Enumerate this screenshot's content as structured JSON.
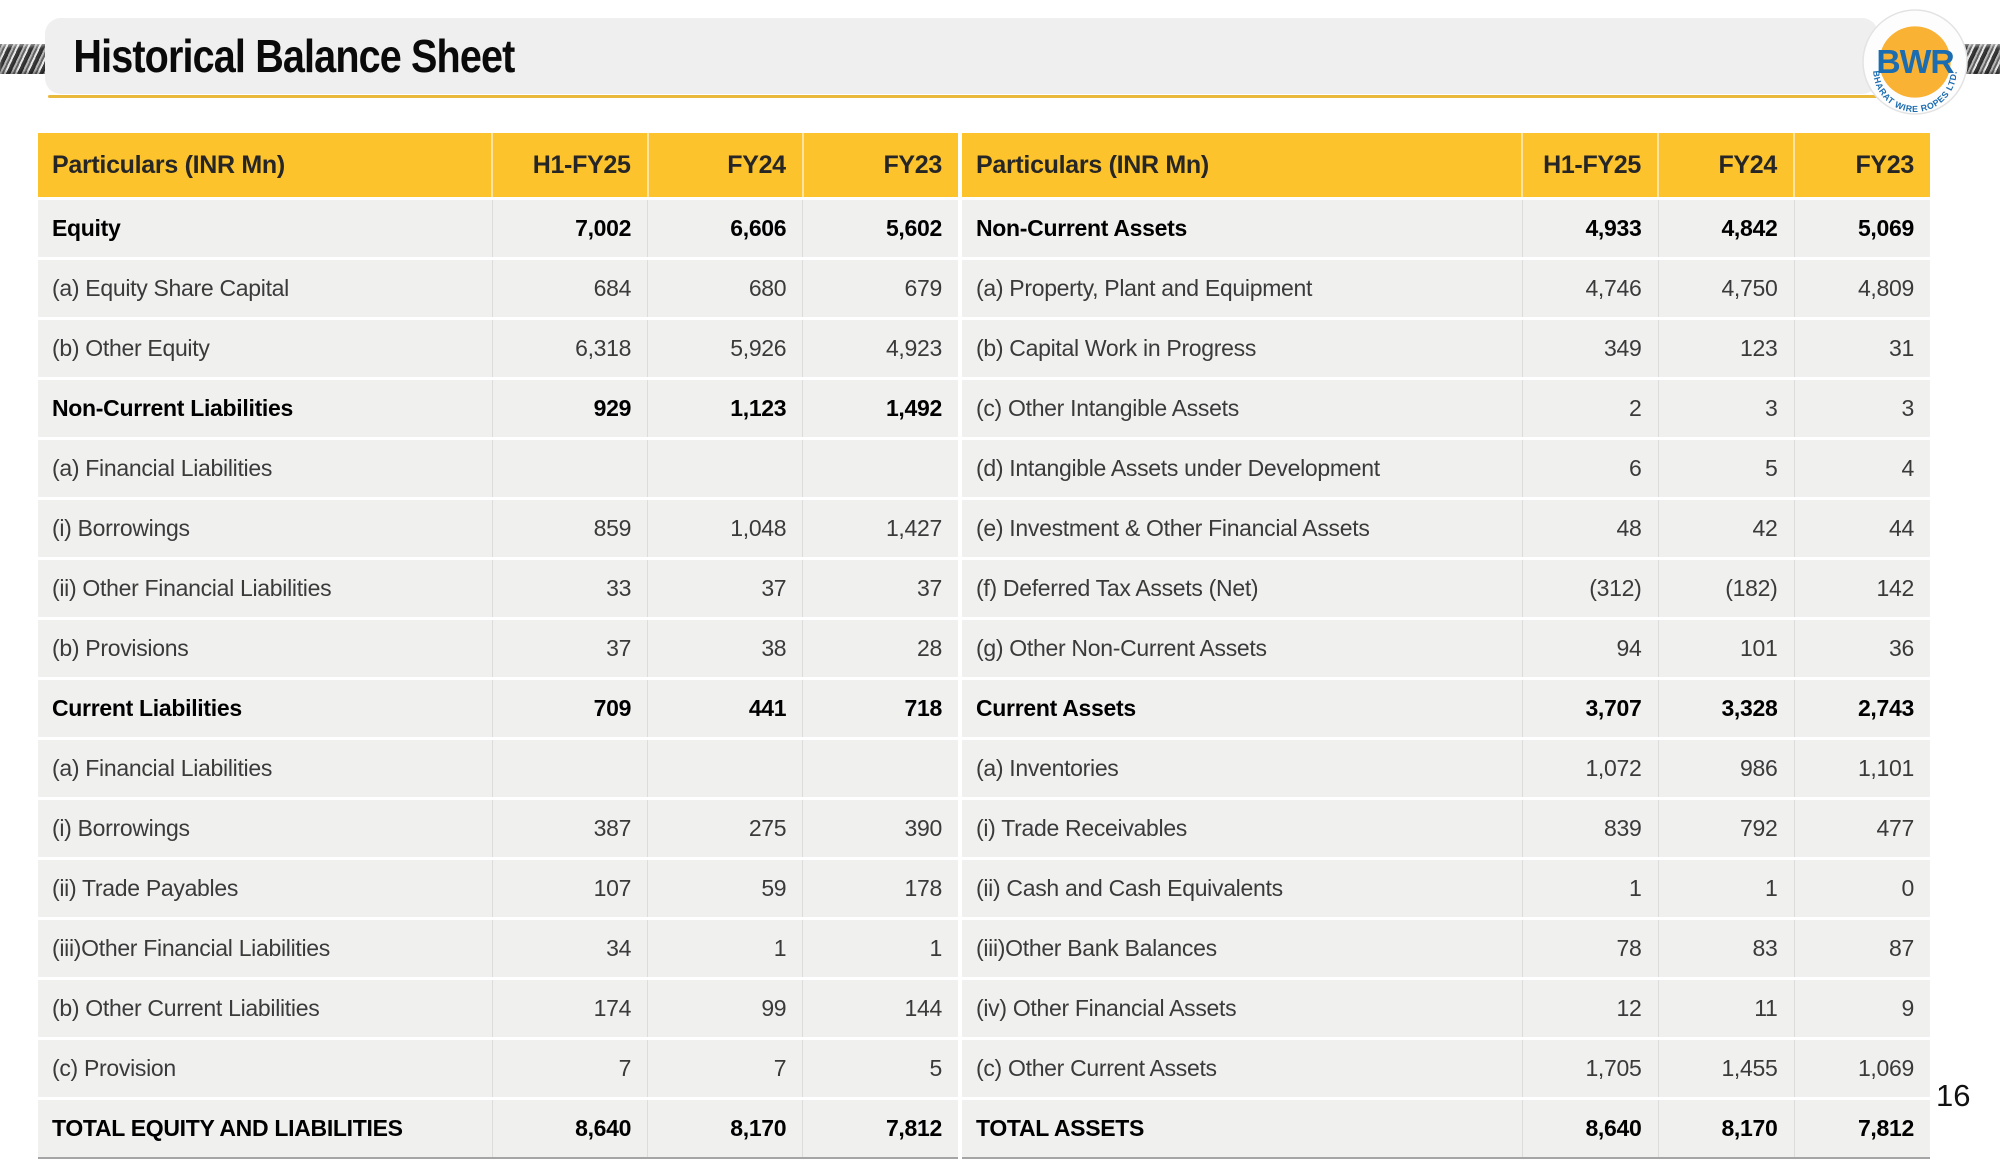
{
  "slide": {
    "title": "Historical Balance Sheet",
    "page_number": "16"
  },
  "logo": {
    "acronym": "BWR",
    "company": "BHARAT WIRE ROPES LTD."
  },
  "colors": {
    "header_bg": "#FCC32C",
    "accent_line": "#E9B93B",
    "row_bg": "#F0F0EF",
    "logo_blue": "#1B6CB0",
    "logo_yellow": "#F9B233"
  },
  "tables": {
    "left": {
      "headers": [
        "Particulars (INR Mn)",
        "H1-FY25",
        "FY24",
        "FY23"
      ],
      "rows": [
        {
          "label": "Equity",
          "values": [
            "7,002",
            "6,606",
            "5,602"
          ],
          "bold": true
        },
        {
          "label": "(a) Equity Share Capital",
          "values": [
            "684",
            "680",
            "679"
          ],
          "bold": false
        },
        {
          "label": "(b) Other Equity",
          "values": [
            "6,318",
            "5,926",
            "4,923"
          ],
          "bold": false
        },
        {
          "label": "Non-Current Liabilities",
          "values": [
            "929",
            "1,123",
            "1,492"
          ],
          "bold": true
        },
        {
          "label": "(a) Financial Liabilities",
          "values": [
            "",
            "",
            ""
          ],
          "bold": false
        },
        {
          "label": "(i) Borrowings",
          "values": [
            "859",
            "1,048",
            "1,427"
          ],
          "bold": false
        },
        {
          "label": "(ii) Other Financial Liabilities",
          "values": [
            "33",
            "37",
            "37"
          ],
          "bold": false
        },
        {
          "label": "(b) Provisions",
          "values": [
            "37",
            "38",
            "28"
          ],
          "bold": false
        },
        {
          "label": "Current Liabilities",
          "values": [
            "709",
            "441",
            "718"
          ],
          "bold": true
        },
        {
          "label": "(a) Financial Liabilities",
          "values": [
            "",
            "",
            ""
          ],
          "bold": false
        },
        {
          "label": "(i) Borrowings",
          "values": [
            "387",
            "275",
            "390"
          ],
          "bold": false
        },
        {
          "label": "(ii) Trade Payables",
          "values": [
            "107",
            "59",
            "178"
          ],
          "bold": false
        },
        {
          "label": "(iii)Other Financial Liabilities",
          "values": [
            "34",
            "1",
            "1"
          ],
          "bold": false
        },
        {
          "label": "(b) Other Current Liabilities",
          "values": [
            "174",
            "99",
            "144"
          ],
          "bold": false
        },
        {
          "label": "(c) Provision",
          "values": [
            "7",
            "7",
            "5"
          ],
          "bold": false
        },
        {
          "label": "TOTAL EQUITY AND LIABILITIES",
          "values": [
            "8,640",
            "8,170",
            "7,812"
          ],
          "bold": true
        }
      ]
    },
    "right": {
      "headers": [
        "Particulars (INR Mn)",
        "H1-FY25",
        "FY24",
        "FY23"
      ],
      "rows": [
        {
          "label": "Non-Current Assets",
          "values": [
            "4,933",
            "4,842",
            "5,069"
          ],
          "bold": true
        },
        {
          "label": "(a) Property, Plant and Equipment",
          "values": [
            "4,746",
            "4,750",
            "4,809"
          ],
          "bold": false
        },
        {
          "label": "(b) Capital Work in Progress",
          "values": [
            "349",
            "123",
            "31"
          ],
          "bold": false
        },
        {
          "label": "(c) Other Intangible Assets",
          "values": [
            "2",
            "3",
            "3"
          ],
          "bold": false
        },
        {
          "label": "(d) Intangible Assets under Development",
          "values": [
            "6",
            "5",
            "4"
          ],
          "bold": false
        },
        {
          "label": "(e) Investment & Other Financial Assets",
          "values": [
            "48",
            "42",
            "44"
          ],
          "bold": false
        },
        {
          "label": "(f) Deferred Tax Assets (Net)",
          "values": [
            "(312)",
            "(182)",
            "142"
          ],
          "bold": false
        },
        {
          "label": "(g) Other Non-Current Assets",
          "values": [
            "94",
            "101",
            "36"
          ],
          "bold": false
        },
        {
          "label": "Current Assets",
          "values": [
            "3,707",
            "3,328",
            "2,743"
          ],
          "bold": true
        },
        {
          "label": "(a) Inventories",
          "values": [
            "1,072",
            "986",
            "1,101"
          ],
          "bold": false
        },
        {
          "label": "(i) Trade Receivables",
          "values": [
            "839",
            "792",
            "477"
          ],
          "bold": false
        },
        {
          "label": "(ii) Cash and Cash Equivalents",
          "values": [
            "1",
            "1",
            "0"
          ],
          "bold": false
        },
        {
          "label": "(iii)Other Bank Balances",
          "values": [
            "78",
            "83",
            "87"
          ],
          "bold": false
        },
        {
          "label": "(iv) Other Financial Assets",
          "values": [
            "12",
            "11",
            "9"
          ],
          "bold": false
        },
        {
          "label": "(c) Other Current Assets",
          "values": [
            "1,705",
            "1,455",
            "1,069"
          ],
          "bold": false
        },
        {
          "label": "TOTAL ASSETS",
          "values": [
            "8,640",
            "8,170",
            "7,812"
          ],
          "bold": true
        }
      ]
    }
  }
}
